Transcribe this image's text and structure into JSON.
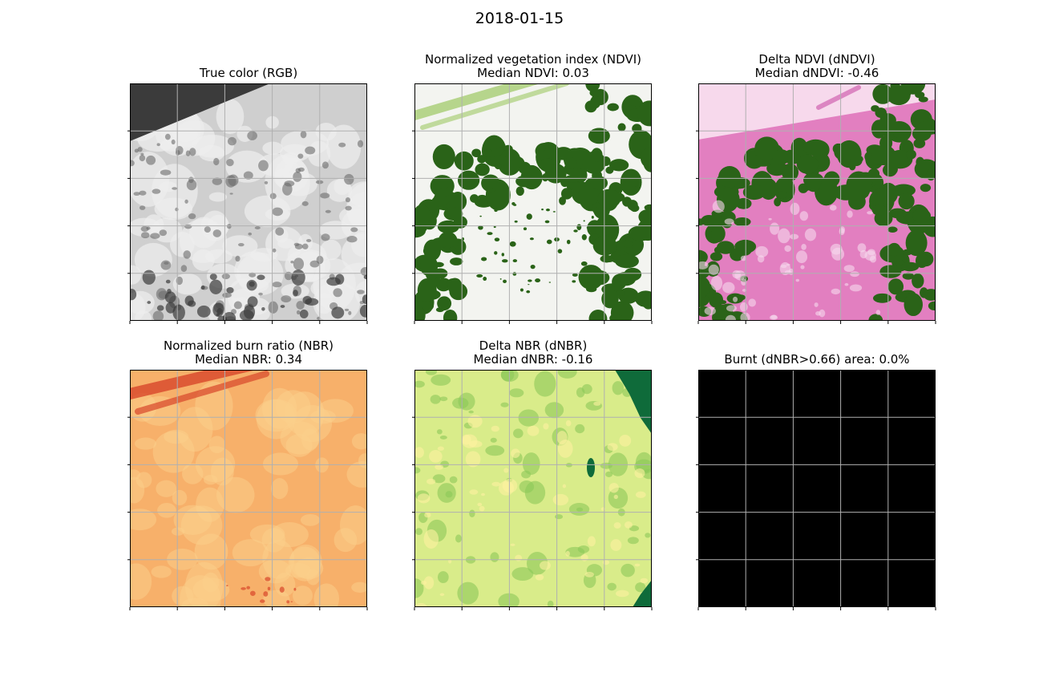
{
  "figure": {
    "title": "2018-01-15"
  },
  "panels": [
    {
      "id": "rgb",
      "title_lines": [
        "True color (RGB)"
      ],
      "style": "rgb"
    },
    {
      "id": "ndvi",
      "title_lines": [
        "Normalized vegetation index (NDVI)",
        "Median NDVI: 0.03"
      ],
      "style": "ndvi"
    },
    {
      "id": "dndvi",
      "title_lines": [
        "Delta NDVI (dNDVI)",
        "Median dNDVI: -0.46"
      ],
      "style": "dndvi"
    },
    {
      "id": "nbr",
      "title_lines": [
        "Normalized burn ratio (NBR)",
        "Median NBR: 0.34"
      ],
      "style": "nbr"
    },
    {
      "id": "dnbr",
      "title_lines": [
        "Delta NBR (dNBR)",
        "Median dNBR: -0.16"
      ],
      "style": "dnbr"
    },
    {
      "id": "burnt",
      "title_lines": [
        "Burnt (dNBR>0.66) area: 0.0%"
      ],
      "style": "burnt"
    }
  ],
  "colors": {
    "grid": "#b0b0b0",
    "ndvi_veg": "#2a6318",
    "ndvi_bare": "#f3f4f0",
    "ndvi_light": "#8fc24a",
    "dndvi_pink": "#e27fc0",
    "dndvi_light": "#f7d9ec",
    "dndvi_dark": "#c2359a",
    "nbr_base": "#f7b06a",
    "nbr_red": "#d9472b",
    "nbr_light": "#fbd08c",
    "dnbr_base": "#d9ec8a",
    "dnbr_green": "#8cc858",
    "dnbr_yellow": "#fdf2a0",
    "dnbr_dark": "#0f6b3a",
    "burnt": "#000000"
  },
  "chart_data": [
    {
      "type": "heatmap",
      "title": "True color (RGB)",
      "grid": true
    },
    {
      "type": "heatmap",
      "title": "Normalized vegetation index (NDVI)",
      "subtitle": "Median NDVI: 0.03",
      "grid": true
    },
    {
      "type": "heatmap",
      "title": "Delta NDVI (dNDVI)",
      "subtitle": "Median dNDVI: -0.46",
      "grid": true
    },
    {
      "type": "heatmap",
      "title": "Normalized burn ratio (NBR)",
      "subtitle": "Median NBR: 0.34",
      "grid": true
    },
    {
      "type": "heatmap",
      "title": "Delta NBR (dNBR)",
      "subtitle": "Median dNBR: -0.16",
      "grid": true
    },
    {
      "type": "heatmap",
      "title": "Burnt (dNBR>0.66) area: 0.0%",
      "grid": true
    }
  ]
}
